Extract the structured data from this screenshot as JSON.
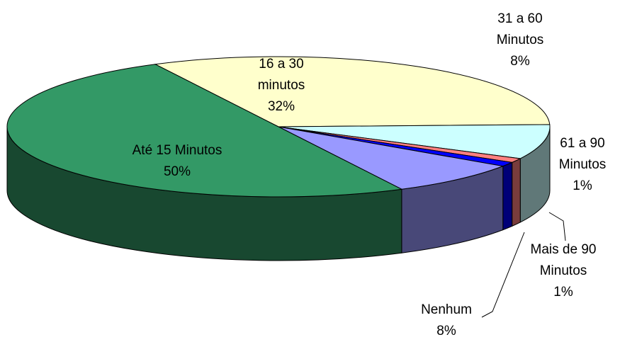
{
  "chart_data": {
    "type": "pie",
    "slices": [
      {
        "label_lines": [
          "16 a 30",
          "minutos"
        ],
        "value": 32,
        "value_label": "32%",
        "color": "#FFFFCC"
      },
      {
        "label_lines": [
          "31 a 60",
          "Minutos"
        ],
        "value": 8,
        "value_label": "8%",
        "color": "#CCFFFF"
      },
      {
        "label_lines": [
          "61 a 90",
          "Minutos"
        ],
        "value": 1,
        "value_label": "1%",
        "color": "#FF8080"
      },
      {
        "label_lines": [
          "Mais de 90",
          "Minutos"
        ],
        "value": 1,
        "value_label": "1%",
        "color": "#0000FF"
      },
      {
        "label_lines": [
          "Nenhum"
        ],
        "value": 8,
        "value_label": "8%",
        "color": "#9999FF"
      },
      {
        "label_lines": [
          "Até 15 Minutos"
        ],
        "value": 50,
        "value_label": "50%",
        "color": "#339966"
      }
    ]
  }
}
